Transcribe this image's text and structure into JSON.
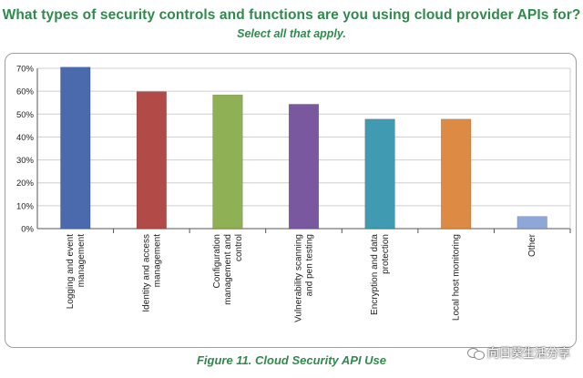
{
  "title": "What types of security controls and functions are you using cloud provider APIs for?",
  "subtitle": "Select all that apply.",
  "caption": "Figure 11. Cloud Security API Use",
  "watermark": {
    "text": "向日葵生活分享",
    "icon": "wechat-icon"
  },
  "chart_data": {
    "type": "bar",
    "categories": [
      [
        "Logging and event",
        "management"
      ],
      [
        "Identity and access",
        "management"
      ],
      [
        "Configuration",
        "management and",
        "control"
      ],
      [
        "Vulnerability scanning",
        "and pen testing"
      ],
      [
        "Encryption and data",
        "protection"
      ],
      [
        "Local host monitoring"
      ],
      [
        "Other"
      ]
    ],
    "values": [
      70.5,
      59.8,
      58.4,
      54.3,
      47.8,
      47.8,
      5.3
    ],
    "colors": [
      "#4a6aad",
      "#b24a47",
      "#8fb055",
      "#7a58a0",
      "#3f9ab2",
      "#dc8a44",
      "#8fa7d6"
    ],
    "ylim": [
      0,
      70
    ],
    "yticks": [
      "0%",
      "10%",
      "20%",
      "30%",
      "40%",
      "50%",
      "60%",
      "70%"
    ],
    "grid": true,
    "xlabel": "",
    "ylabel": ""
  }
}
